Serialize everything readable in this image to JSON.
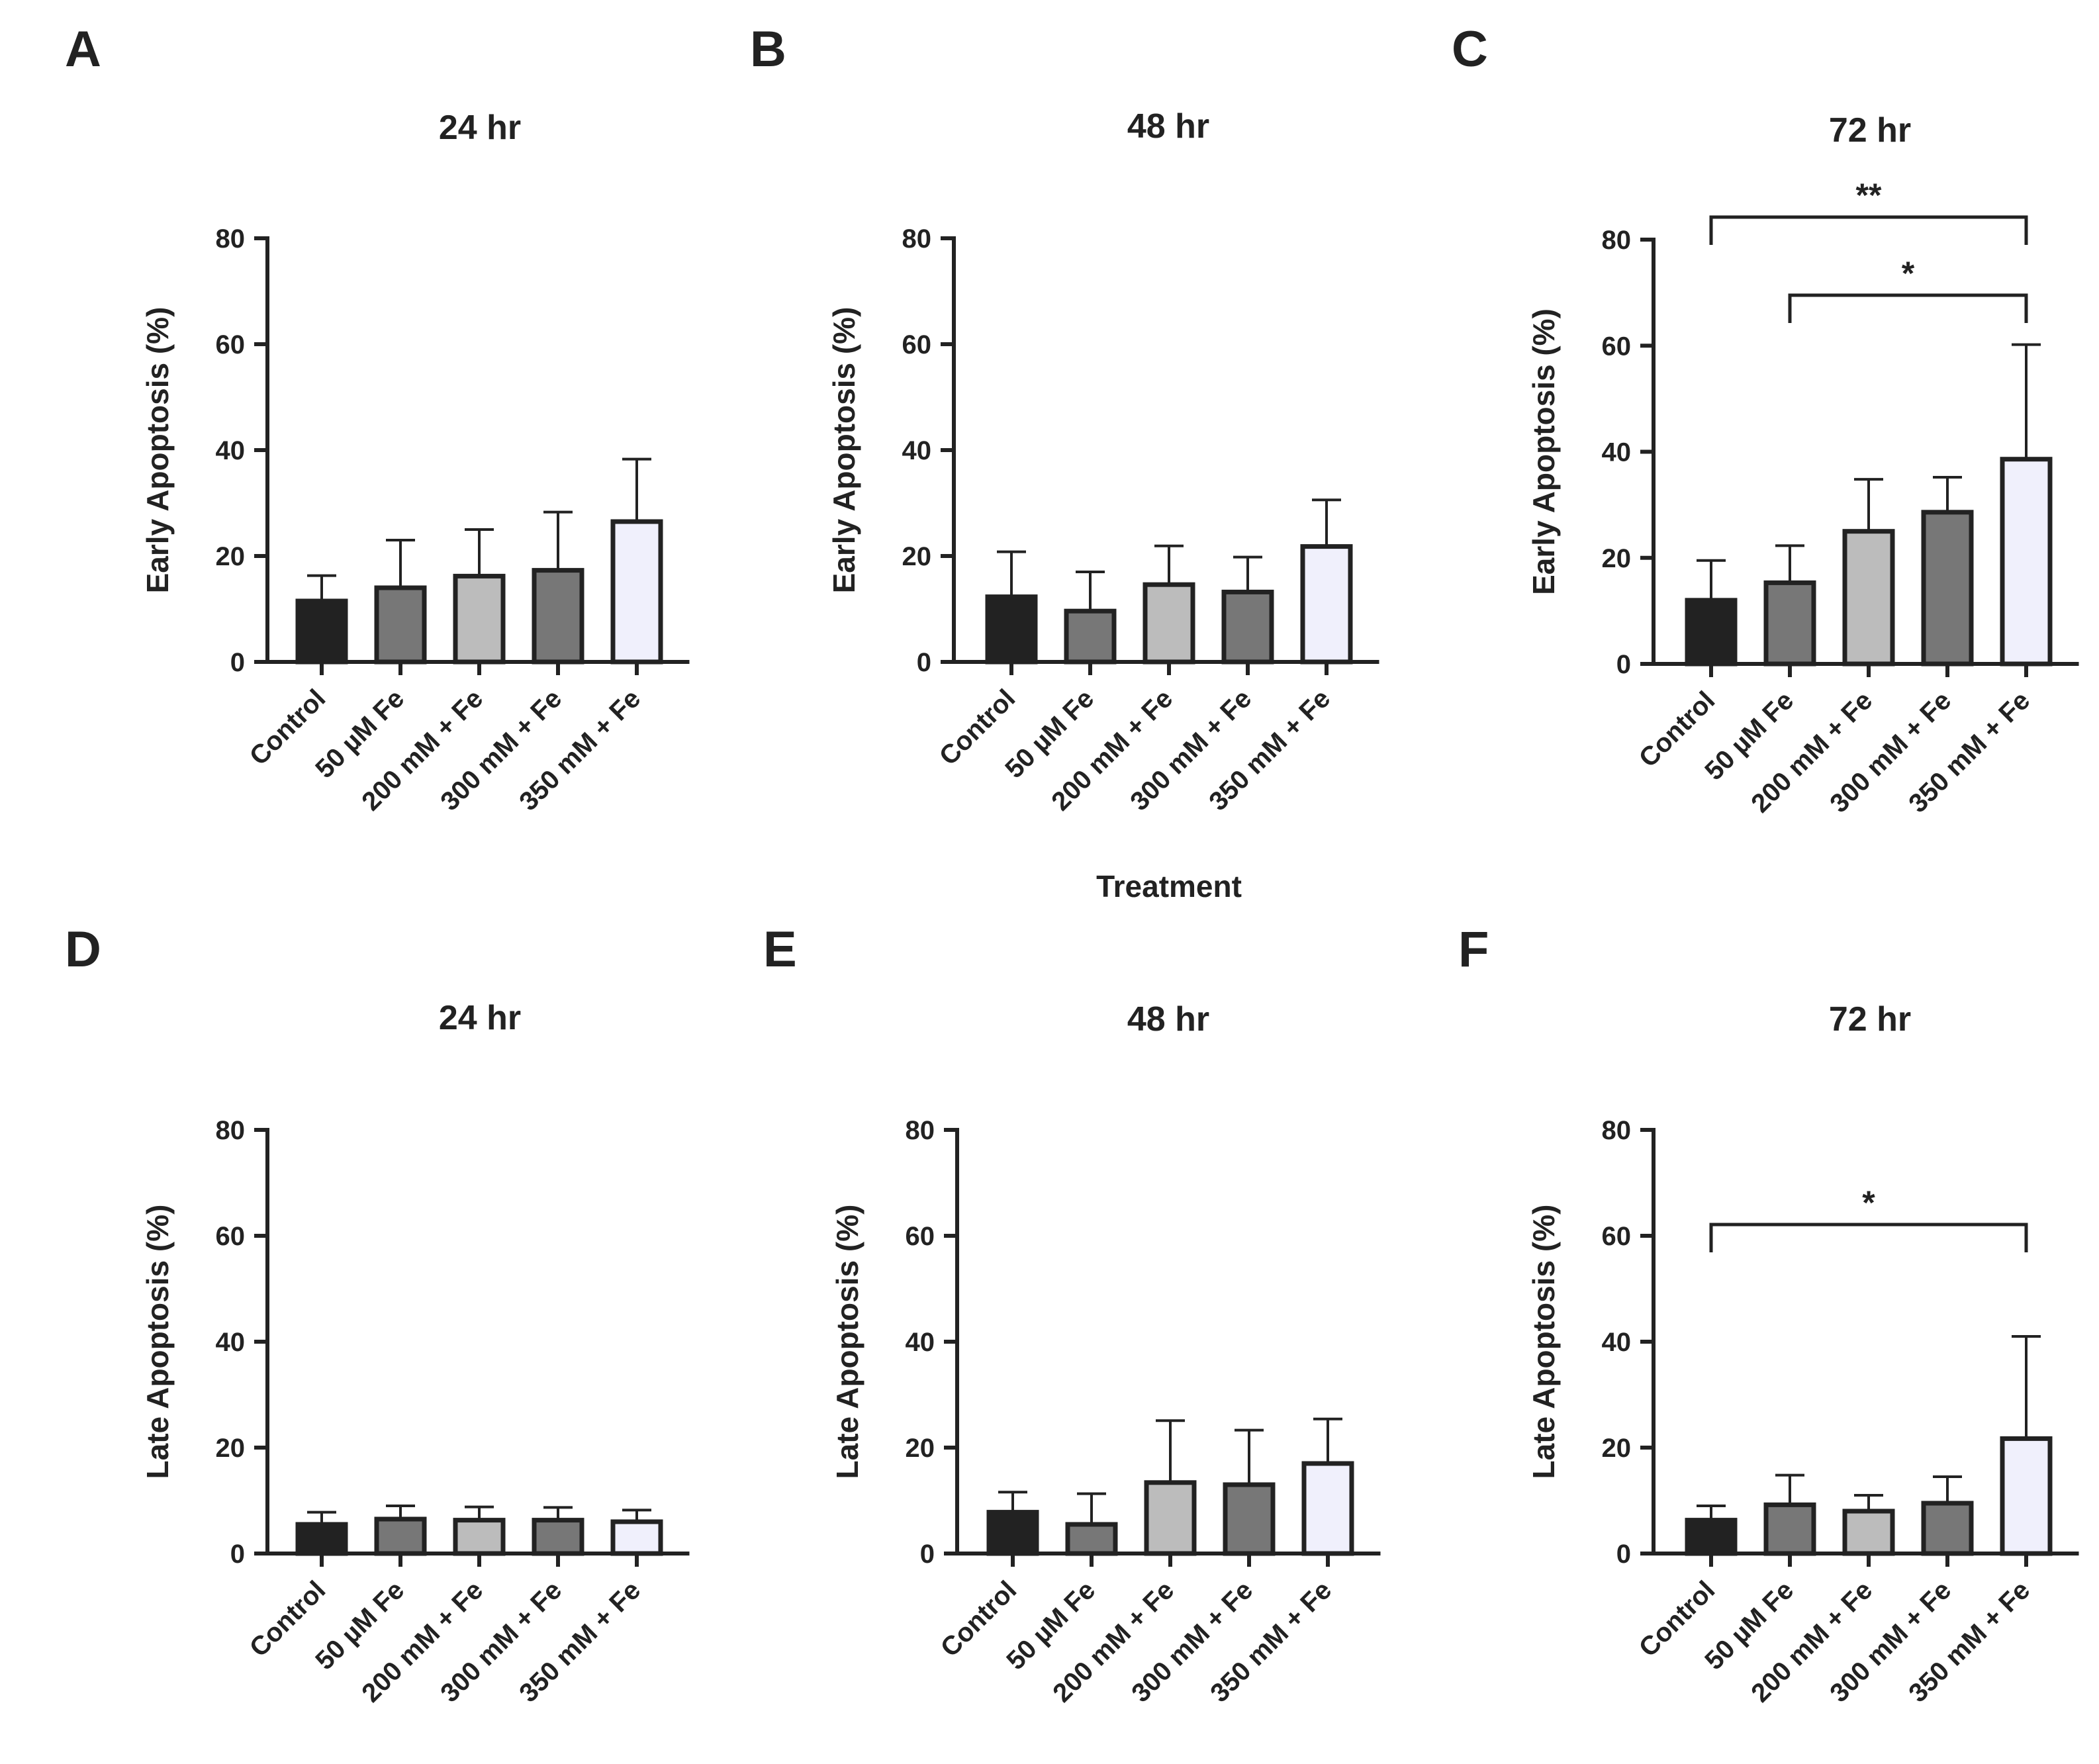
{
  "chart_data": [
    {
      "type": "bar",
      "panel": "A",
      "title": "24 hr",
      "ylabel": "Early Apoptosis (%)",
      "xlabel": "",
      "ylim": [
        0,
        80
      ],
      "yticks": [
        "0",
        "20",
        "40",
        "60",
        "80"
      ],
      "categories": [
        "Control",
        "50 µM Fe",
        "200 mM + Fe",
        "300 mM + Fe",
        "350 mM + Fe"
      ],
      "values": [
        11.5,
        14,
        16.2,
        17.3,
        26.5
      ],
      "errors": [
        4.8,
        9,
        8.8,
        11,
        11.8
      ],
      "colors": [
        "#222222",
        "#777777",
        "#bcbcbc",
        "#777777",
        "#f0f0fc"
      ],
      "significance": []
    },
    {
      "type": "bar",
      "panel": "B",
      "title": "48 hr",
      "ylabel": "Early Apoptosis (%)",
      "xlabel": "Treatment",
      "ylim": [
        0,
        80
      ],
      "yticks": [
        "0",
        "20",
        "40",
        "60",
        "80"
      ],
      "categories": [
        "Control",
        "50 µM Fe",
        "200 mM + Fe",
        "300 mM + Fe",
        "350 mM + Fe"
      ],
      "values": [
        12.3,
        9.6,
        14.6,
        13.2,
        21.8
      ],
      "errors": [
        8.5,
        7.4,
        7.3,
        6.6,
        8.8
      ],
      "colors": [
        "#222222",
        "#777777",
        "#bcbcbc",
        "#777777",
        "#f0f0fc"
      ],
      "significance": []
    },
    {
      "type": "bar",
      "panel": "C",
      "title": "72 hr",
      "ylabel": "Early Apoptosis (%)",
      "xlabel": "",
      "ylim": [
        0,
        80
      ],
      "yticks": [
        "0",
        "20",
        "40",
        "60",
        "80"
      ],
      "categories": [
        "Control",
        "50 µM Fe",
        "200 mM + Fe",
        "300 mM + Fe",
        "350 mM + Fe"
      ],
      "values": [
        12,
        15.3,
        25,
        28.6,
        38.6
      ],
      "errors": [
        7.5,
        7,
        9.8,
        6.6,
        21.6
      ],
      "colors": [
        "#222222",
        "#777777",
        "#bcbcbc",
        "#777777",
        "#f0f0fc"
      ],
      "significance": [
        {
          "from": 0,
          "to": 4,
          "label": "**"
        },
        {
          "from": 1,
          "to": 4,
          "label": "*"
        }
      ]
    },
    {
      "type": "bar",
      "panel": "D",
      "title": "24 hr",
      "ylabel": "Late Apoptosis (%)",
      "xlabel": "",
      "ylim": [
        0,
        80
      ],
      "yticks": [
        "0",
        "20",
        "40",
        "60",
        "80"
      ],
      "categories": [
        "Control",
        "50 µM Fe",
        "200 mM + Fe",
        "300 mM + Fe",
        "350 mM + Fe"
      ],
      "values": [
        5.5,
        6.5,
        6.3,
        6.3,
        6
      ],
      "errors": [
        2.3,
        2.5,
        2.5,
        2.4,
        2.2
      ],
      "colors": [
        "#222222",
        "#777777",
        "#bcbcbc",
        "#777777",
        "#f0f0fc"
      ],
      "significance": []
    },
    {
      "type": "bar",
      "panel": "E",
      "title": "48 hr",
      "ylabel": "Late Apoptosis (%)",
      "xlabel": "",
      "ylim": [
        0,
        80
      ],
      "yticks": [
        "0",
        "20",
        "40",
        "60",
        "80"
      ],
      "categories": [
        "Control",
        "50 µM Fe",
        "200 mM + Fe",
        "300 mM + Fe",
        "350 mM + Fe"
      ],
      "values": [
        7.8,
        5.5,
        13.4,
        13,
        17
      ],
      "errors": [
        3.8,
        5.8,
        11.7,
        10.3,
        8.4
      ],
      "colors": [
        "#222222",
        "#777777",
        "#bcbcbc",
        "#777777",
        "#f0f0fc"
      ],
      "significance": []
    },
    {
      "type": "bar",
      "panel": "F",
      "title": "72 hr",
      "ylabel": "Late Apoptosis (%)",
      "xlabel": "",
      "ylim": [
        0,
        80
      ],
      "yticks": [
        "0",
        "20",
        "40",
        "60",
        "80"
      ],
      "categories": [
        "Control",
        "50 µM Fe",
        "200 mM + Fe",
        "300 mM + Fe",
        "350 mM + Fe"
      ],
      "values": [
        6.3,
        9.2,
        8,
        9.5,
        21.7
      ],
      "errors": [
        2.7,
        5.6,
        3,
        5,
        19.3
      ],
      "colors": [
        "#222222",
        "#777777",
        "#bcbcbc",
        "#777777",
        "#f0f0fc"
      ],
      "significance": [
        {
          "from": 0,
          "to": 4,
          "label": "*"
        }
      ]
    }
  ]
}
